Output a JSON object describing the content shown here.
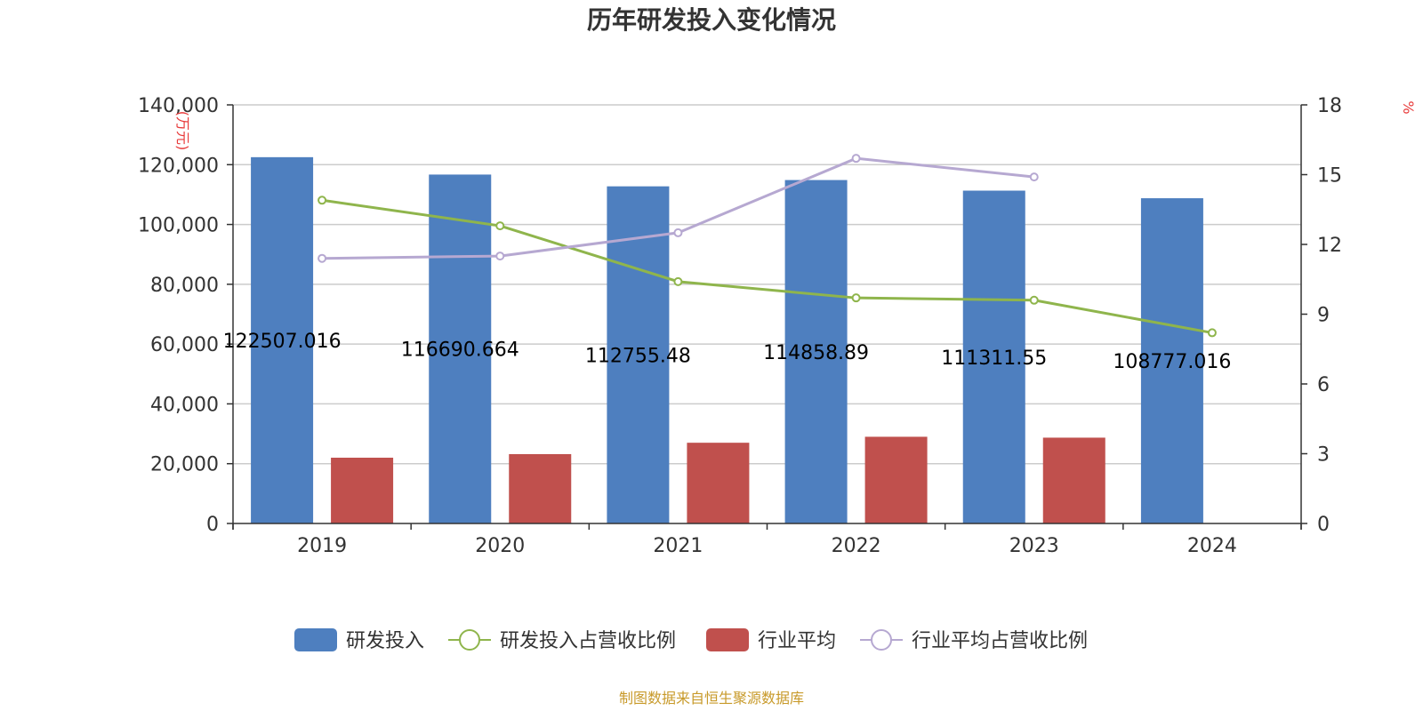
{
  "chart_data": {
    "title": "历年研发投入变化情况",
    "categories": [
      "2019",
      "2020",
      "2021",
      "2022",
      "2023",
      "2024"
    ],
    "y_left": {
      "unit": "(万元)",
      "min": 0,
      "max": 140000,
      "ticks": [
        "0",
        "20,000",
        "40,000",
        "60,000",
        "80,000",
        "100,000",
        "120,000",
        "140,000"
      ]
    },
    "y_right": {
      "unit": "%",
      "min": 0,
      "max": 18,
      "ticks": [
        "0",
        "3",
        "6",
        "9",
        "12",
        "15",
        "18"
      ]
    },
    "grid": true,
    "legend_position": "bottom",
    "series": [
      {
        "name": "研发投入",
        "type": "bar",
        "axis": "left",
        "color": "#4e7fbf",
        "values": [
          122507.016,
          116690.664,
          112755.48,
          114858.89,
          111311.55,
          108777.016
        ],
        "labels": [
          "122507.016",
          "116690.664",
          "112755.48",
          "114858.89",
          "111311.55",
          "108777.016"
        ]
      },
      {
        "name": "研发投入占营收比例",
        "type": "line",
        "axis": "right",
        "color": "#8fb54c",
        "values": [
          13.9,
          12.8,
          10.4,
          9.7,
          9.6,
          8.2
        ]
      },
      {
        "name": "行业平均",
        "type": "bar",
        "axis": "left",
        "color": "#c0504d",
        "values": [
          22000,
          23200,
          27000,
          29000,
          28700,
          null
        ]
      },
      {
        "name": "行业平均占营收比例",
        "type": "line",
        "axis": "right",
        "color": "#b6a8d1",
        "values": [
          11.4,
          11.5,
          12.5,
          15.7,
          14.9,
          null
        ]
      }
    ]
  },
  "footer": {
    "source": "制图数据来自恒生聚源数据库"
  }
}
